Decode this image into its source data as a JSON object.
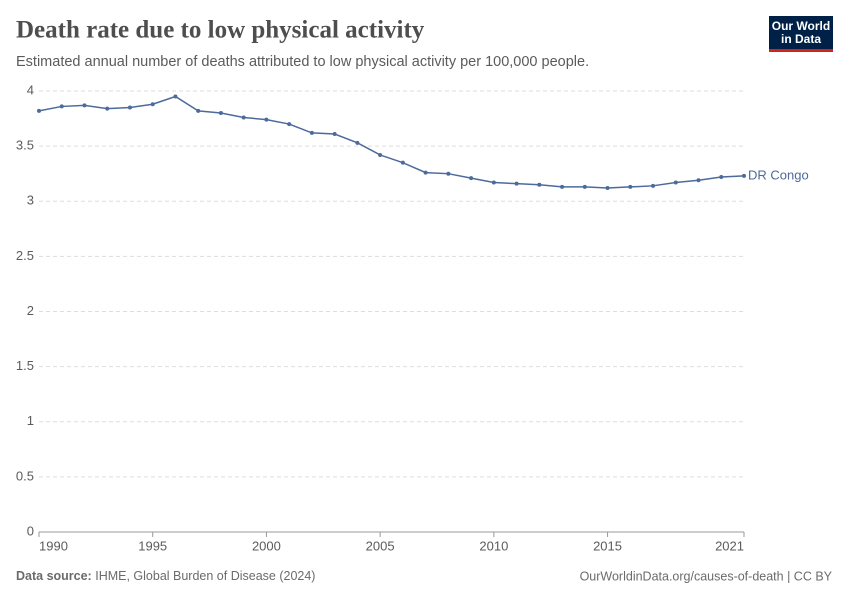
{
  "logo": [
    "Our World",
    "in Data"
  ],
  "chart_data": {
    "type": "line",
    "title": "Death rate due to low physical activity",
    "subtitle": "Estimated annual number of deaths attributed to low physical activity per 100,000 people.",
    "x": [
      1990,
      1991,
      1992,
      1993,
      1994,
      1995,
      1996,
      1997,
      1998,
      1999,
      2000,
      2001,
      2002,
      2003,
      2004,
      2005,
      2006,
      2007,
      2008,
      2009,
      2010,
      2011,
      2012,
      2013,
      2014,
      2015,
      2016,
      2017,
      2018,
      2019,
      2020,
      2021
    ],
    "series": [
      {
        "name": "DR Congo",
        "color": "#4c6a9c",
        "values": [
          3.82,
          3.86,
          3.87,
          3.84,
          3.85,
          3.88,
          3.95,
          3.82,
          3.8,
          3.76,
          3.74,
          3.7,
          3.62,
          3.61,
          3.53,
          3.42,
          3.35,
          3.26,
          3.25,
          3.21,
          3.17,
          3.16,
          3.15,
          3.13,
          3.13,
          3.12,
          3.13,
          3.14,
          3.17,
          3.19,
          3.22,
          3.23
        ]
      }
    ],
    "xlim": [
      1990,
      2021
    ],
    "xticks": [
      1990,
      1995,
      2000,
      2005,
      2010,
      2015,
      2021
    ],
    "ylim": [
      0,
      4
    ],
    "yticks": [
      0,
      0.5,
      1,
      1.5,
      2,
      2.5,
      3,
      3.5,
      4
    ],
    "grid": true,
    "source_label": "Data source:",
    "source": "IHME, Global Burden of Disease (2024)",
    "footer_right": "OurWorldinData.org/causes-of-death | CC BY"
  }
}
